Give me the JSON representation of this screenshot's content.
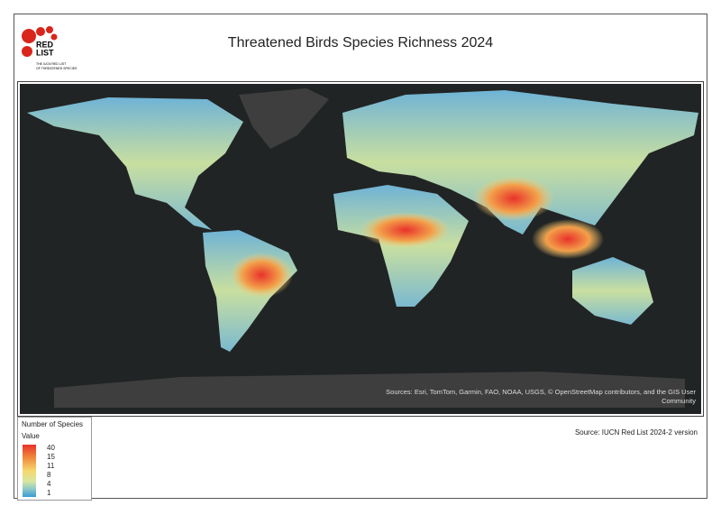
{
  "header": {
    "title": "Threatened Birds Species Richness 2024"
  },
  "logo": {
    "lines": [
      "RED",
      "LIST"
    ],
    "tagline": [
      "THE IUCN RED LIST",
      "OF THREATENED SPECIES"
    ]
  },
  "map": {
    "attribution": [
      "Sources: Esri, TomTom, Garmin, FAO, NOAA, USGS, © OpenStreetMap contributors, and the GIS User",
      "Community"
    ]
  },
  "legend": {
    "title": "Number of Species",
    "subtitle": "Value",
    "values": [
      40,
      15,
      11,
      8,
      4,
      1
    ]
  },
  "footer": {
    "source": "Source: IUCN Red List 2024-2 version"
  }
}
